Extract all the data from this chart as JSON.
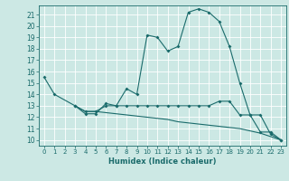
{
  "bg_color": "#cce8e4",
  "grid_color": "#ffffff",
  "line_color": "#1a6b6b",
  "xlabel": "Humidex (Indice chaleur)",
  "xlim": [
    -0.5,
    23.5
  ],
  "ylim": [
    9.5,
    21.8
  ],
  "yticks": [
    10,
    11,
    12,
    13,
    14,
    15,
    16,
    17,
    18,
    19,
    20,
    21
  ],
  "xticks": [
    0,
    1,
    2,
    3,
    4,
    5,
    6,
    7,
    8,
    9,
    10,
    11,
    12,
    13,
    14,
    15,
    16,
    17,
    18,
    19,
    20,
    21,
    22,
    23
  ],
  "line1_x": [
    0,
    1,
    3,
    4,
    5,
    6,
    7,
    8,
    9,
    10,
    11,
    12,
    13,
    14,
    15,
    16,
    17,
    18,
    19,
    20,
    21,
    22,
    23
  ],
  "line1_y": [
    15.5,
    14.0,
    13.0,
    12.3,
    12.3,
    13.2,
    13.0,
    14.5,
    14.0,
    19.2,
    19.0,
    17.8,
    18.2,
    21.2,
    21.5,
    21.2,
    20.4,
    18.2,
    15.0,
    12.2,
    10.7,
    10.7,
    10.0
  ],
  "line2_x": [
    3,
    4,
    5,
    6,
    7,
    8,
    9,
    10,
    11,
    12,
    13,
    14,
    15,
    16,
    17,
    18,
    19,
    20,
    21,
    22,
    23
  ],
  "line2_y": [
    13.0,
    12.5,
    12.5,
    13.0,
    13.0,
    13.0,
    13.0,
    13.0,
    13.0,
    13.0,
    13.0,
    13.0,
    13.0,
    13.0,
    13.4,
    13.4,
    12.2,
    12.2,
    12.2,
    10.5,
    10.0
  ],
  "line3_x": [
    3,
    4,
    5,
    6,
    7,
    8,
    9,
    10,
    11,
    12,
    13,
    14,
    15,
    16,
    17,
    18,
    19,
    20,
    21,
    22,
    23
  ],
  "line3_y": [
    13.0,
    12.5,
    12.5,
    12.4,
    12.3,
    12.2,
    12.1,
    12.0,
    11.9,
    11.8,
    11.6,
    11.5,
    11.4,
    11.3,
    11.2,
    11.1,
    11.0,
    10.8,
    10.6,
    10.3,
    10.0
  ]
}
